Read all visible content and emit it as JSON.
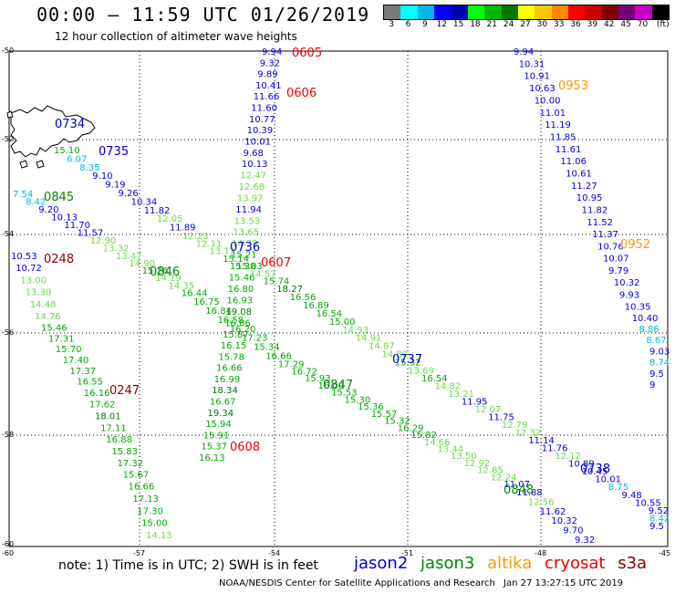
{
  "title": "00:00 – 11:59 UTC 01/26/2019",
  "subtitle": "12 hour collection of altimeter wave heights",
  "legend": {
    "unit": "(ft)",
    "colors": [
      "#7a7a7a",
      "#00ffff",
      "#00b7e8",
      "#0000ff",
      "#0000b0",
      "#00ff00",
      "#00b800",
      "#007800",
      "#ffff00",
      "#ffc800",
      "#ff8800",
      "#ff0000",
      "#c80000",
      "#800000",
      "#7a007a",
      "#c800c8",
      "#000000"
    ],
    "labels": [
      "3",
      "6",
      "9",
      "12",
      "15",
      "18",
      "21",
      "24",
      "27",
      "30",
      "33",
      "36",
      "39",
      "42",
      "45",
      "70",
      "(ft)"
    ]
  },
  "axes": {
    "lon_ticks": [
      "-60",
      "-57",
      "-54",
      "-51",
      "-48",
      "-45"
    ],
    "lat_ticks": [
      "-50",
      "-52",
      "-54",
      "-56",
      "-58",
      "-60"
    ]
  },
  "note": "note: 1) Time is in UTC; 2) SWH is in feet",
  "satellites": [
    {
      "name": "jason2",
      "color": "#0000cc"
    },
    {
      "name": "jason3",
      "color": "#008800"
    },
    {
      "name": "altika",
      "color": "#ff9900"
    },
    {
      "name": "cryosat",
      "color": "#ee0000"
    },
    {
      "name": "s3a",
      "color": "#880000"
    }
  ],
  "credit": "NOAA/NESDIS Center for Satellite Applications and Research",
  "timestamp": "Jan 27 13:27:15 UTC 2019",
  "pass_labels": [
    {
      "text": "0605",
      "sat": "cryosat"
    },
    {
      "text": "0606",
      "sat": "cryosat"
    },
    {
      "text": "0734",
      "sat": "jason2"
    },
    {
      "text": "0735",
      "sat": "jason2"
    },
    {
      "text": "0845",
      "sat": "jason3"
    },
    {
      "text": "0248",
      "sat": "s3a"
    },
    {
      "text": "0736",
      "sat": "jason2"
    },
    {
      "text": "0607",
      "sat": "cryosat"
    },
    {
      "text": "0846",
      "sat": "jason3"
    },
    {
      "text": "0247",
      "sat": "s3a"
    },
    {
      "text": "0737",
      "sat": "jason2"
    },
    {
      "text": "0847",
      "sat": "jason3"
    },
    {
      "text": "0608",
      "sat": "cryosat"
    },
    {
      "text": "0953",
      "sat": "altika"
    },
    {
      "text": "0952",
      "sat": "altika"
    },
    {
      "text": "0738",
      "sat": "jason2"
    },
    {
      "text": "0848",
      "sat": "jason3"
    }
  ],
  "tracks": [
    {
      "name": "cryosat-0605-0606",
      "values": [
        "9.94",
        "9.32",
        "9.89",
        "10.41",
        "11.66",
        "11.60",
        "10.77",
        "10.39",
        "10.01",
        "9.68",
        "10.13",
        "12.47",
        "12.68",
        "13.97",
        "11.94",
        "13.53",
        "13.65",
        "14.39",
        "15.21",
        "15.38",
        "15.46",
        "16.80",
        "16.93",
        "19.08",
        "16.86",
        "15.87",
        "16.15",
        "15.78",
        "16.66",
        "16.99",
        "18.34",
        "16.67",
        "19.34",
        "15.94",
        "15.91",
        "15.37",
        "16.13"
      ]
    },
    {
      "name": "altika-0953-0952",
      "values": [
        "9.94",
        "10.31",
        "10.91",
        "10.63",
        "10.00",
        "11.01",
        "11.19",
        "11.85",
        "11.61",
        "11.06",
        "10.61",
        "11.27",
        "10.95",
        "11.82",
        "11.52",
        "11.37",
        "10.76",
        "10.07",
        "9.79",
        "10.32",
        "9.93",
        "10.35",
        "10.40",
        "8.86",
        "8.67",
        "9.03",
        "8.74",
        "9.5",
        "9"
      ]
    },
    {
      "name": "jason2-0734-0738",
      "values": [
        "15.10",
        "6.07",
        "8.35",
        "9.10",
        "9.19",
        "9.26",
        "10.34",
        "11.82",
        "12.05",
        "11.89",
        "12.23",
        "12.11",
        "13.11",
        "15.14",
        "15.03",
        "14.57",
        "15.74",
        "18.27",
        "16.56",
        "16.89",
        "16.54",
        "15.00",
        "14.93",
        "14.91",
        "14.87",
        "14.80",
        "15.32",
        "13.69",
        "16.54",
        "14.82",
        "13.21",
        "11.95",
        "12.07",
        "11.75",
        "12.79",
        "12.32",
        "11.14",
        "11.76",
        "12.12",
        "10.89",
        "10.45",
        "10.01",
        "8.75",
        "9.48",
        "10.55",
        "9.52",
        "8.42",
        "9.5"
      ]
    },
    {
      "name": "jason3-0845-0848",
      "values": [
        "7.54",
        "8.42",
        "9.20",
        "10.13",
        "11.70",
        "11.57",
        "12.90",
        "13.32",
        "13.47",
        "14.90",
        "15.26",
        "14.19",
        "14.35",
        "16.44",
        "16.75",
        "16.84",
        "16.58",
        "16.20",
        "17.23",
        "15.34",
        "16.66",
        "17.29",
        "16.72",
        "15.93",
        "16.00",
        "15.53",
        "15.30",
        "15.36",
        "15.57",
        "15.32",
        "16.29",
        "15.82",
        "14.66",
        "13.44",
        "13.50",
        "12.92",
        "12.85",
        "12.24",
        "11.07",
        "11.88",
        "12.56",
        "11.62",
        "10.32",
        "9.70",
        "9.32"
      ]
    },
    {
      "name": "s3a-0248-0247",
      "values": [
        "10.53",
        "10.72",
        "13.00",
        "13.30",
        "14.48",
        "14.76",
        "15.46",
        "17.31",
        "15.70",
        "17.40",
        "17.37",
        "16.55",
        "16.16",
        "17.62",
        "18.01",
        "17.11",
        "16.88",
        "15.83",
        "17.32",
        "15.67",
        "16.66",
        "17.13",
        "17.30",
        "15.00",
        "14.13"
      ]
    }
  ]
}
